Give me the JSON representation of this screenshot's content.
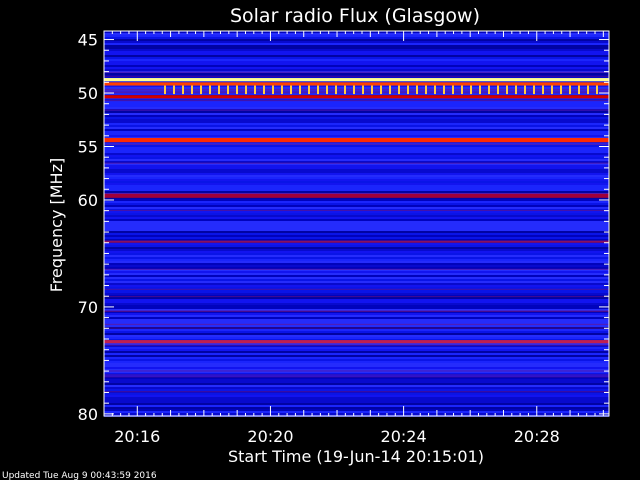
{
  "chart_data": {
    "type": "heatmap",
    "title": "Solar radio Flux (Glasgow)",
    "ylabel": "Frequency [MHz]",
    "xlabel": "Start Time (19-Jun-14 20:15:01)",
    "footer": "Updated Tue Aug  9 00:43:59 2016",
    "x_start": "20:15:01",
    "x_end": "20:30:10",
    "xlim_minutes": [
      15.0,
      30.17
    ],
    "ylim": [
      44.2,
      80.2
    ],
    "y_ticks": [
      45,
      50,
      55,
      60,
      70,
      80
    ],
    "y_major_ticks": [
      {
        "value": 45,
        "label": "45"
      },
      {
        "value": 50,
        "label": "50"
      },
      {
        "value": 55,
        "label": "55"
      },
      {
        "value": 60,
        "label": "60"
      },
      {
        "value": 70,
        "label": "70"
      },
      {
        "value": 80,
        "label": "80"
      }
    ],
    "x_ticks": [
      {
        "minute": 16,
        "label": "20:16"
      },
      {
        "minute": 20,
        "label": "20:20"
      },
      {
        "minute": 24,
        "label": "20:24"
      },
      {
        "minute": 28,
        "label": "20:28"
      }
    ],
    "background_color": "#0a14e6",
    "bands": [
      {
        "freq_from": 48.6,
        "freq_to": 48.9,
        "color": "#ffff90"
      },
      {
        "freq_from": 49.0,
        "freq_to": 49.3,
        "color": "#ff4000"
      },
      {
        "freq_from": 50.2,
        "freq_to": 50.5,
        "color": "#d00000"
      },
      {
        "freq_from": 54.2,
        "freq_to": 54.6,
        "color": "#ff2a00"
      },
      {
        "freq_from": 59.4,
        "freq_to": 59.8,
        "color": "#a0003a"
      },
      {
        "freq_from": 63.8,
        "freq_to": 64.0,
        "color": "#8a1060"
      },
      {
        "freq_from": 73.1,
        "freq_to": 73.4,
        "color": "#c02050"
      }
    ],
    "spike_row": {
      "freq_from": 49.3,
      "freq_to": 50.1,
      "color": "#ffcc40"
    }
  }
}
